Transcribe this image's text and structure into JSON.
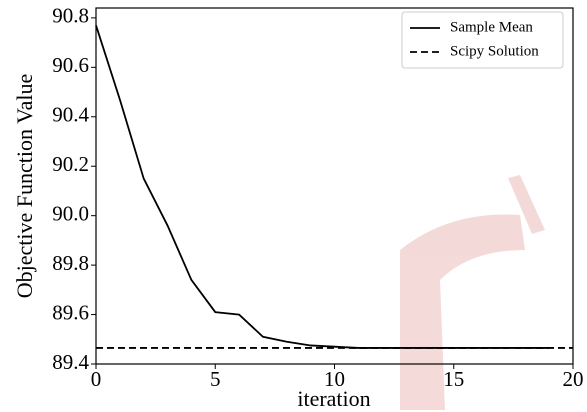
{
  "chart_data": {
    "type": "line",
    "x_label": "iteration",
    "y_label": "Objective Function Value",
    "x": [
      0,
      1,
      2,
      3,
      4,
      5,
      6,
      7,
      8,
      9,
      10,
      11,
      12,
      13,
      14,
      15,
      16,
      17,
      18,
      19
    ],
    "series": [
      {
        "name": "Sample Mean",
        "color": "#000000",
        "dash": "solid",
        "values": [
          90.77,
          90.47,
          90.15,
          89.96,
          89.74,
          89.61,
          89.6,
          89.51,
          89.49,
          89.475,
          89.47,
          89.465,
          89.465,
          89.465,
          89.465,
          89.465,
          89.465,
          89.465,
          89.465,
          89.465
        ]
      },
      {
        "name": "Scipy Solution",
        "color": "#000000",
        "dash": "dashed",
        "x": [
          0,
          20
        ],
        "values": [
          89.465,
          89.465
        ]
      }
    ],
    "xlim": [
      0,
      20
    ],
    "xticks": [
      0,
      5,
      10,
      15,
      20
    ],
    "ylim": [
      89.4,
      90.84
    ],
    "yticks": [
      {
        "value": 89.4,
        "label": "89.4"
      },
      {
        "value": 89.6,
        "label": "89.6"
      },
      {
        "value": 89.8,
        "label": "89.8"
      },
      {
        "value": 90.0,
        "label": "90.0"
      },
      {
        "value": 90.2,
        "label": "90.2"
      },
      {
        "value": 90.4,
        "label": "90.4"
      },
      {
        "value": 90.6,
        "label": "90.6"
      },
      {
        "value": 90.8,
        "label": "90.8"
      }
    ],
    "legend": "upper right"
  }
}
